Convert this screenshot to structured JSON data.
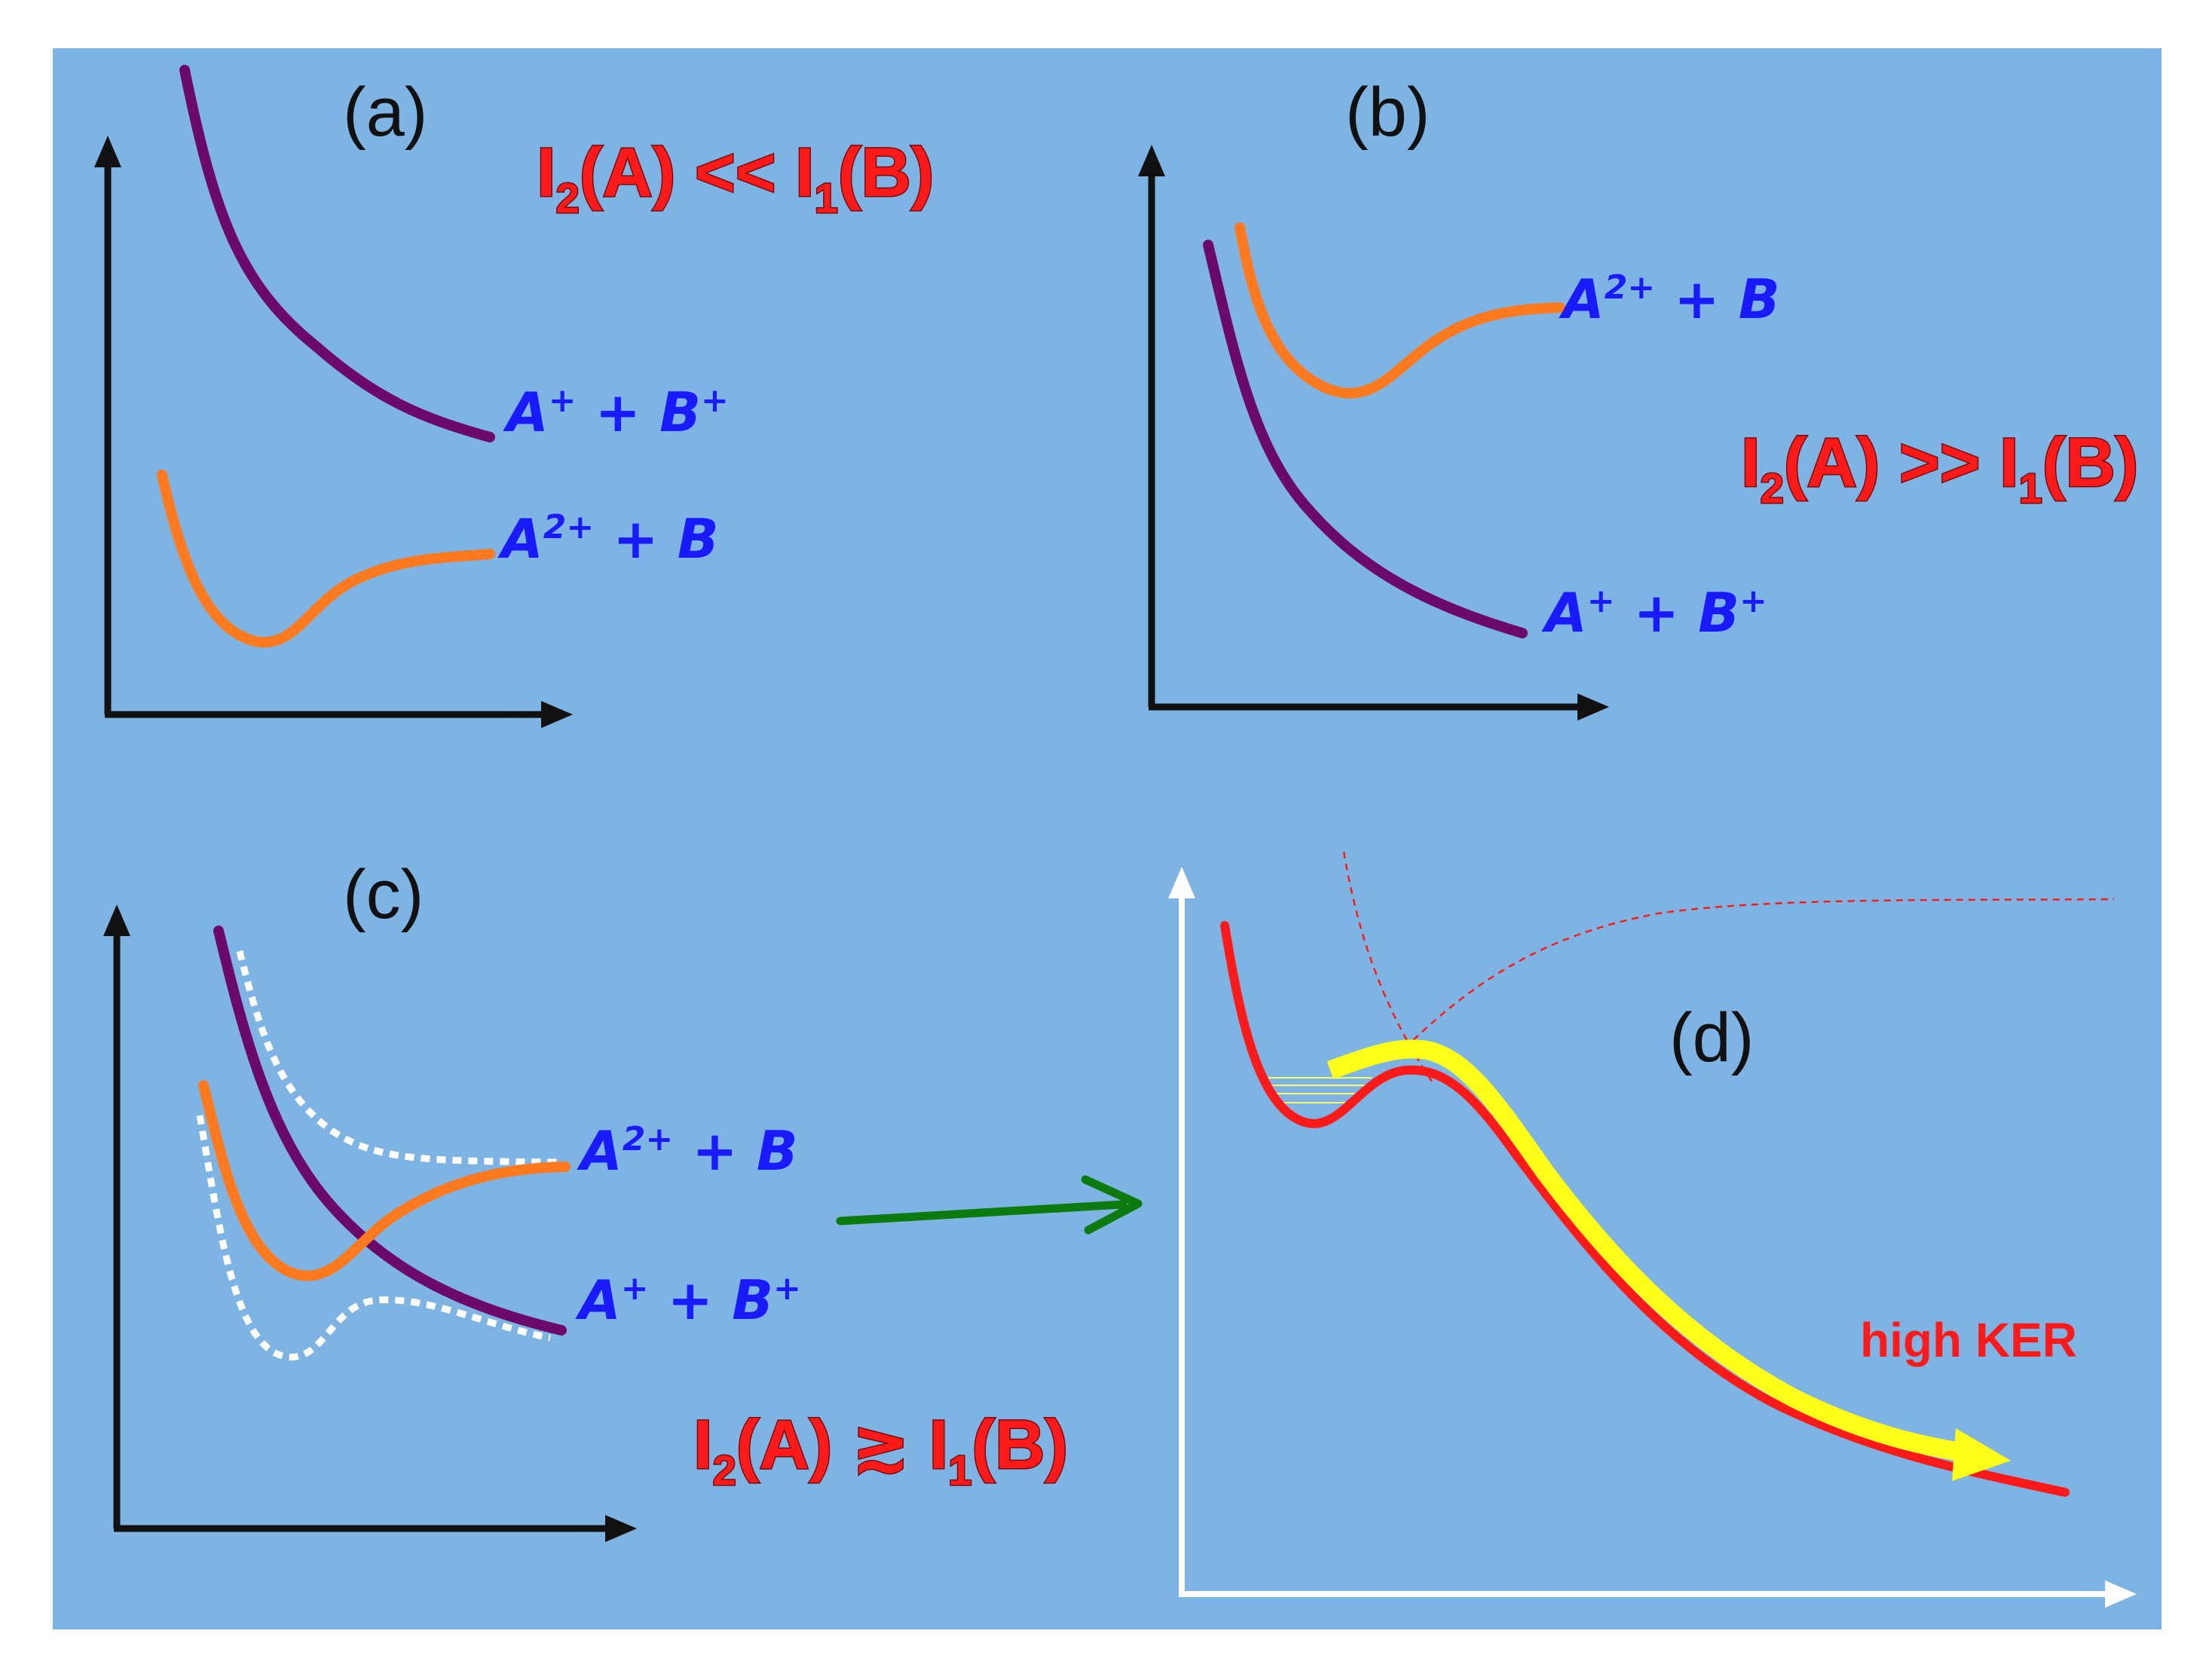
{
  "colors": {
    "background": "#7eb4e3",
    "axis": "#111111",
    "axis_d": "#ffffff",
    "ion_pair_curve": "#6b0a6b",
    "dication_curve": "#ff7a1e",
    "diabatic_dotted": "#ffffff",
    "curve_d": "#ff1a1a",
    "arrow_d": "#ffff1a",
    "connector_arrow": "#0d7a0d",
    "species_text": "#1a1aff",
    "condition_text": "#ff1a1a"
  },
  "panels": {
    "a": {
      "label": "(a)",
      "condition": {
        "i2": "I",
        "i2_sub": "2",
        "i2_arg": "(A) << ",
        "i1": "I",
        "i1_sub": "1",
        "i1_arg": "(B)"
      },
      "upper_channel": {
        "base": "A",
        "charge_a": "+",
        "plus": " + ",
        "b": "B",
        "charge_b": "+"
      },
      "lower_channel": {
        "base": "A",
        "charge_a": "2+",
        "plus": " + ",
        "b": "B"
      }
    },
    "b": {
      "label": "(b)",
      "condition": {
        "i2": "I",
        "i2_sub": "2",
        "i2_arg": "(A) >> ",
        "i1": "I",
        "i1_sub": "1",
        "i1_arg": "(B)"
      },
      "upper_channel": {
        "base": "A",
        "charge_a": "2+",
        "plus": " + ",
        "b": "B"
      },
      "lower_channel": {
        "base": "A",
        "charge_a": "+",
        "plus": " + ",
        "b": "B",
        "charge_b": "+"
      }
    },
    "c": {
      "label": "(c)",
      "condition": {
        "i2": "I",
        "i2_sub": "2",
        "i2_arg": "(A) ",
        "rel": "≳",
        "i1": " I",
        "i1_sub": "1",
        "i1_arg": "(B)"
      },
      "upper_channel": {
        "base": "A",
        "charge_a": "2+",
        "plus": " + ",
        "b": "B"
      },
      "lower_channel": {
        "base": "A",
        "charge_a": "+",
        "plus": " + ",
        "b": "B",
        "charge_b": "+"
      }
    },
    "d": {
      "label": "(d)",
      "annotation": "high KER"
    }
  }
}
